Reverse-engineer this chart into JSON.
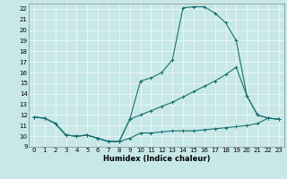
{
  "xlabel": "Humidex (Indice chaleur)",
  "bg_color": "#c8e8e8",
  "line_color": "#1a7070",
  "xlim": [
    -0.5,
    23.5
  ],
  "ylim": [
    9,
    22.5
  ],
  "xticks": [
    0,
    1,
    2,
    3,
    4,
    5,
    6,
    7,
    8,
    9,
    10,
    11,
    12,
    13,
    14,
    15,
    16,
    17,
    18,
    19,
    20,
    21,
    22,
    23
  ],
  "yticks": [
    9,
    10,
    11,
    12,
    13,
    14,
    15,
    16,
    17,
    18,
    19,
    20,
    21,
    22
  ],
  "curve1_x": [
    0,
    1,
    2,
    3,
    4,
    5,
    6,
    7,
    8,
    9,
    10,
    11,
    12,
    13,
    14,
    15,
    16,
    17,
    18,
    19,
    20,
    21,
    22,
    23
  ],
  "curve1_y": [
    11.8,
    11.7,
    11.2,
    10.1,
    10.0,
    10.1,
    9.8,
    9.5,
    9.5,
    9.8,
    10.3,
    10.3,
    10.4,
    10.5,
    10.5,
    10.5,
    10.6,
    10.7,
    10.8,
    10.9,
    11.0,
    11.2,
    11.7,
    11.6
  ],
  "curve2_x": [
    0,
    1,
    2,
    3,
    4,
    5,
    6,
    7,
    8,
    9,
    10,
    11,
    12,
    13,
    14,
    15,
    16,
    17,
    18,
    19,
    20,
    21,
    22,
    23
  ],
  "curve2_y": [
    11.8,
    11.7,
    11.2,
    10.1,
    10.0,
    10.1,
    9.8,
    9.5,
    9.5,
    11.6,
    15.2,
    15.5,
    16.0,
    17.2,
    22.1,
    22.2,
    22.2,
    21.6,
    20.7,
    19.0,
    13.8,
    12.0,
    11.7,
    11.6
  ],
  "curve3_x": [
    0,
    1,
    2,
    3,
    4,
    5,
    6,
    7,
    8,
    9,
    10,
    11,
    12,
    13,
    14,
    15,
    16,
    17,
    18,
    19,
    20,
    21,
    22,
    23
  ],
  "curve3_y": [
    11.8,
    11.7,
    11.2,
    10.1,
    10.0,
    10.1,
    9.8,
    9.5,
    9.5,
    11.6,
    12.0,
    12.4,
    12.8,
    13.2,
    13.7,
    14.2,
    14.7,
    15.2,
    15.8,
    16.5,
    13.8,
    12.0,
    11.7,
    11.6
  ],
  "xlabel_fontsize": 6,
  "tick_fontsize": 5,
  "linewidth": 0.8,
  "markersize": 2.5
}
